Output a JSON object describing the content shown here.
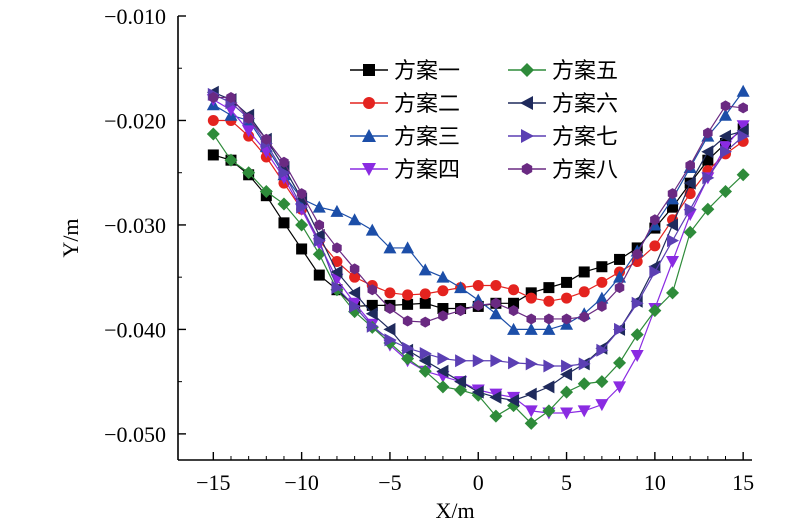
{
  "chart_data": {
    "type": "line",
    "title": "",
    "xlabel": "X/m",
    "ylabel": "Y/m",
    "xlim": [
      -17,
      15.5
    ],
    "ylim": [
      -0.0525,
      -0.01
    ],
    "xticks": [
      -15,
      -10,
      -5,
      0,
      5,
      10,
      15
    ],
    "xtick_labels": [
      "−15",
      "−10",
      "−5",
      "0",
      "5",
      "10",
      "15"
    ],
    "yticks": [
      -0.01,
      -0.02,
      -0.03,
      -0.04,
      -0.05
    ],
    "ytick_labels": [
      "−0.010",
      "−0.020",
      "−0.030",
      "−0.040",
      "−0.050"
    ],
    "legend_position": "top-center",
    "x": [
      -15,
      -14,
      -13,
      -12,
      -11,
      -10,
      -9,
      -8,
      -7,
      -6,
      -5,
      -4,
      -3,
      -2,
      -1,
      0,
      1,
      2,
      3,
      4,
      5,
      6,
      7,
      8,
      9,
      10,
      11,
      12,
      13,
      14,
      15
    ],
    "series": [
      {
        "name": "方案一",
        "color": "#000000",
        "marker": "square",
        "values": [
          -0.0233,
          -0.0238,
          -0.0252,
          -0.0272,
          -0.0298,
          -0.0323,
          -0.0348,
          -0.0362,
          -0.0378,
          -0.0377,
          -0.0377,
          -0.0376,
          -0.0375,
          -0.038,
          -0.038,
          -0.0378,
          -0.0375,
          -0.0375,
          -0.0365,
          -0.036,
          -0.0355,
          -0.0345,
          -0.034,
          -0.0333,
          -0.0322,
          -0.0303,
          -0.0283,
          -0.026,
          -0.0238,
          -0.0222,
          -0.0208
        ]
      },
      {
        "name": "方案二",
        "color": "#e4231f",
        "marker": "circle",
        "values": [
          -0.02,
          -0.02,
          -0.0215,
          -0.0235,
          -0.026,
          -0.0285,
          -0.0315,
          -0.0335,
          -0.035,
          -0.0358,
          -0.0365,
          -0.0367,
          -0.0366,
          -0.0363,
          -0.036,
          -0.0358,
          -0.0358,
          -0.0362,
          -0.037,
          -0.0373,
          -0.037,
          -0.0364,
          -0.0355,
          -0.0345,
          -0.0335,
          -0.032,
          -0.0295,
          -0.027,
          -0.0248,
          -0.0232,
          -0.022
        ]
      },
      {
        "name": "方案三",
        "color": "#1c4ea8",
        "marker": "triangle-up",
        "values": [
          -0.0185,
          -0.0195,
          -0.02,
          -0.0225,
          -0.0252,
          -0.0275,
          -0.0283,
          -0.0287,
          -0.0295,
          -0.0305,
          -0.0322,
          -0.0322,
          -0.0343,
          -0.035,
          -0.036,
          -0.0372,
          -0.0385,
          -0.04,
          -0.04,
          -0.04,
          -0.0395,
          -0.0385,
          -0.037,
          -0.035,
          -0.0325,
          -0.03,
          -0.0275,
          -0.0245,
          -0.0215,
          -0.0195,
          -0.0172
        ]
      },
      {
        "name": "方案四",
        "color": "#8a2be2",
        "marker": "triangle-down",
        "values": [
          -0.018,
          -0.019,
          -0.021,
          -0.023,
          -0.0255,
          -0.0285,
          -0.0318,
          -0.0352,
          -0.0375,
          -0.0395,
          -0.0415,
          -0.043,
          -0.044,
          -0.0445,
          -0.045,
          -0.0458,
          -0.0462,
          -0.0465,
          -0.0478,
          -0.048,
          -0.048,
          -0.0478,
          -0.0472,
          -0.0455,
          -0.0425,
          -0.038,
          -0.0335,
          -0.029,
          -0.0255,
          -0.0225,
          -0.0205
        ]
      },
      {
        "name": "方案五",
        "color": "#2e8b3a",
        "marker": "diamond",
        "values": [
          -0.0213,
          -0.0238,
          -0.025,
          -0.0268,
          -0.028,
          -0.03,
          -0.0328,
          -0.0362,
          -0.0383,
          -0.0398,
          -0.0413,
          -0.0428,
          -0.044,
          -0.0455,
          -0.0458,
          -0.0463,
          -0.0483,
          -0.0473,
          -0.049,
          -0.0478,
          -0.046,
          -0.0452,
          -0.045,
          -0.0432,
          -0.0405,
          -0.0382,
          -0.0365,
          -0.0307,
          -0.0285,
          -0.0268,
          -0.0252
        ]
      },
      {
        "name": "方案六",
        "color": "#1f2a5c",
        "marker": "triangle-left",
        "values": [
          -0.0173,
          -0.018,
          -0.0195,
          -0.0218,
          -0.0245,
          -0.0275,
          -0.031,
          -0.0345,
          -0.0365,
          -0.0385,
          -0.04,
          -0.042,
          -0.043,
          -0.044,
          -0.045,
          -0.046,
          -0.0465,
          -0.0468,
          -0.0462,
          -0.0455,
          -0.0443,
          -0.0433,
          -0.0418,
          -0.04,
          -0.0373,
          -0.034,
          -0.03,
          -0.026,
          -0.023,
          -0.0215,
          -0.021
        ]
      },
      {
        "name": "方案七",
        "color": "#5b3fb3",
        "marker": "triangle-right",
        "values": [
          -0.0175,
          -0.0183,
          -0.0198,
          -0.0222,
          -0.025,
          -0.0283,
          -0.0315,
          -0.036,
          -0.0378,
          -0.0397,
          -0.041,
          -0.0418,
          -0.0423,
          -0.0428,
          -0.043,
          -0.043,
          -0.043,
          -0.0432,
          -0.0433,
          -0.0435,
          -0.0435,
          -0.0433,
          -0.042,
          -0.04,
          -0.0375,
          -0.0345,
          -0.0315,
          -0.0285,
          -0.0255,
          -0.023,
          -0.0215
        ]
      },
      {
        "name": "方案八",
        "color": "#6a2a82",
        "marker": "hexagon",
        "values": [
          -0.0178,
          -0.0178,
          -0.0198,
          -0.0218,
          -0.024,
          -0.027,
          -0.03,
          -0.0322,
          -0.0342,
          -0.0362,
          -0.038,
          -0.0392,
          -0.0393,
          -0.0387,
          -0.0382,
          -0.0377,
          -0.0375,
          -0.0382,
          -0.039,
          -0.039,
          -0.039,
          -0.0388,
          -0.0378,
          -0.036,
          -0.0328,
          -0.0295,
          -0.027,
          -0.0243,
          -0.0212,
          -0.0186,
          -0.0188
        ]
      }
    ]
  }
}
